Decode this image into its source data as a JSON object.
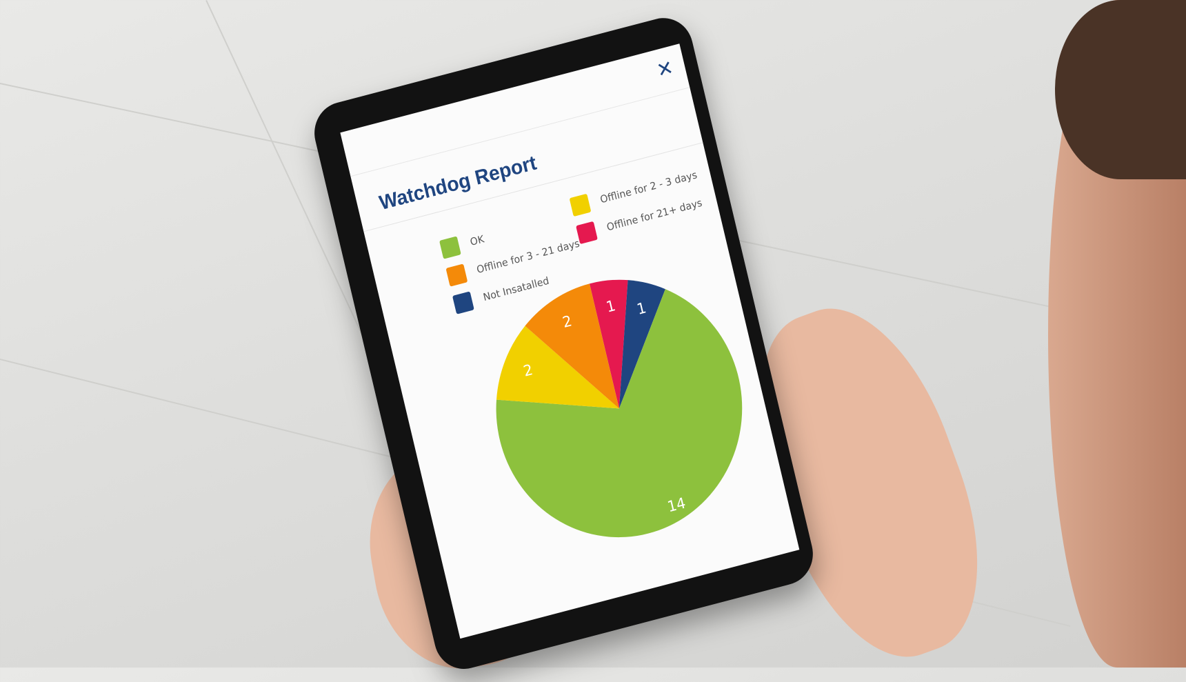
{
  "report": {
    "title": "Watchdog Report",
    "close_icon": "close-x-icon"
  },
  "legend": [
    {
      "label": "OK",
      "color": "#8dc13d"
    },
    {
      "label": "Offline for 3 - 21 days",
      "color": "#f48a09"
    },
    {
      "label": "Not Insatalled",
      "color": "#1f4580"
    },
    {
      "label": "Offline for 2 - 3 days",
      "color": "#f1d000"
    },
    {
      "label": "Offline for 21+ days",
      "color": "#e5194f"
    }
  ],
  "chart_data": {
    "type": "pie",
    "title": "",
    "slices": [
      {
        "label": "Offline for 21+ days",
        "value": 1,
        "color": "#e5194f"
      },
      {
        "label": "Not Insatalled",
        "value": 1,
        "color": "#1f4580"
      },
      {
        "label": "OK",
        "value": 14,
        "color": "#8dc13d"
      },
      {
        "label": "Offline for 2 - 3 days",
        "value": 2,
        "color": "#f1d000"
      },
      {
        "label": "Offline for 3 - 21 days",
        "value": 2,
        "color": "#f48a09"
      }
    ],
    "data_labels": [
      "1",
      "1",
      "14",
      "2",
      "2"
    ],
    "start_angle_deg": 0,
    "direction": "clockwise"
  }
}
